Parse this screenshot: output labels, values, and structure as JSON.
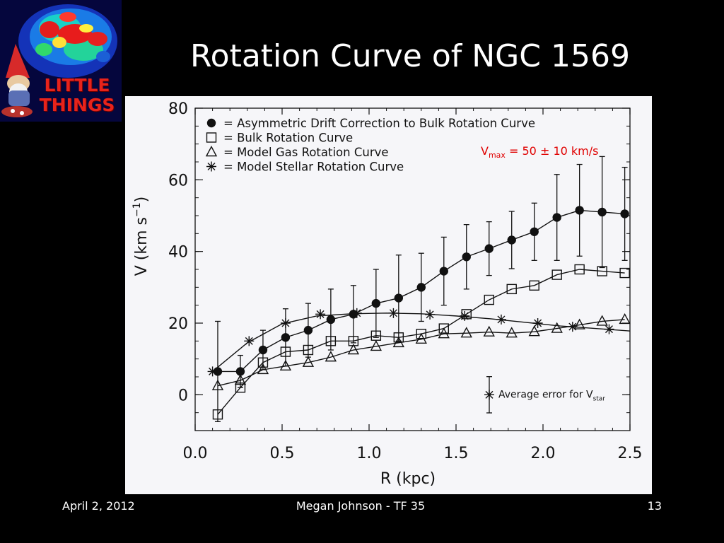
{
  "slide": {
    "title": "Rotation Curve of NGC 1569",
    "logo_text_line1": "LITTLE",
    "logo_text_line2": "THINGS",
    "footer_date": "April 2, 2012",
    "footer_center": "Megan Johnson - TF 35",
    "footer_page": "13"
  },
  "colors": {
    "background": "#000000",
    "text": "#ffffff",
    "annotation": "#e00000",
    "logo_text": "#e8231b"
  },
  "chart_data": {
    "type": "scatter",
    "xlabel": "R (kpc)",
    "ylabel_parts": [
      "V (km s",
      "−1",
      ")"
    ],
    "xlim": [
      0.0,
      2.5
    ],
    "ylim": [
      -10,
      80
    ],
    "xticks": [
      "0.0",
      "0.5",
      "1.0",
      "1.5",
      "2.0",
      "2.5"
    ],
    "yticks": [
      "0",
      "20",
      "40",
      "60",
      "80"
    ],
    "legend_position": "top-left",
    "annotation": {
      "v": "V",
      "sub": "max",
      "rest": " = 50 ± 10 km/s"
    },
    "error_legend": {
      "text": "Average error for V",
      "sub": "star",
      "err": 2.3
    },
    "series": [
      {
        "name": "Asymmetric Drift Correction to Bulk Rotation Curve",
        "marker": "filled-circle",
        "x": [
          0.13,
          0.26,
          0.39,
          0.52,
          0.65,
          0.78,
          0.91,
          1.04,
          1.17,
          1.3,
          1.43,
          1.56,
          1.69,
          1.82,
          1.95,
          2.08,
          2.21,
          2.34,
          2.47
        ],
        "y": [
          6.5,
          6.5,
          12.5,
          16,
          18,
          21,
          22.5,
          25.5,
          27,
          30,
          34.5,
          38.5,
          40.8,
          43.2,
          45.5,
          49.5,
          51.5,
          51,
          50.5
        ],
        "err": [
          14,
          4.5,
          5.5,
          8,
          7.5,
          8.5,
          8,
          9.5,
          12,
          9.5,
          9.5,
          9,
          7.5,
          8,
          8,
          12,
          12.8,
          15.5,
          13
        ]
      },
      {
        "name": "Bulk Rotation Curve",
        "marker": "open-square",
        "x": [
          0.13,
          0.26,
          0.39,
          0.52,
          0.65,
          0.78,
          0.91,
          1.04,
          1.17,
          1.3,
          1.43,
          1.56,
          1.69,
          1.82,
          1.95,
          2.08,
          2.21,
          2.34,
          2.47
        ],
        "y": [
          -5.5,
          2,
          9,
          12,
          12.5,
          15,
          15,
          16.5,
          16,
          17,
          18.5,
          22.5,
          26.5,
          29.5,
          30.5,
          33.5,
          35,
          34.5,
          34
        ]
      },
      {
        "name": "Model Gas Rotation Curve",
        "marker": "open-triangle",
        "x": [
          0.13,
          0.26,
          0.39,
          0.52,
          0.65,
          0.78,
          0.91,
          1.04,
          1.17,
          1.3,
          1.43,
          1.56,
          1.69,
          1.82,
          1.95,
          2.08,
          2.21,
          2.34,
          2.47
        ],
        "y": [
          2.5,
          4,
          7,
          8,
          9,
          10.5,
          12.5,
          13.5,
          14.5,
          15.5,
          17,
          17.2,
          17.5,
          17.2,
          17.6,
          18.5,
          19.5,
          20.5,
          21
        ]
      },
      {
        "name": "Model Stellar Rotation Curve",
        "marker": "asterisk",
        "x": [
          0.1,
          0.31,
          0.52,
          0.72,
          0.93,
          1.14,
          1.35,
          1.55,
          1.76,
          1.97,
          2.17,
          2.38
        ],
        "y": [
          6.5,
          15,
          20,
          22.5,
          22.8,
          22.8,
          22.4,
          22,
          21,
          20,
          19,
          18.3
        ],
        "line_x": [
          0.1,
          0.3,
          0.5,
          0.7,
          0.9,
          1.1,
          1.3,
          1.5,
          1.7,
          1.9,
          2.1,
          2.3,
          2.5
        ],
        "line_y": [
          6.5,
          14.5,
          19.8,
          22,
          22.6,
          22.8,
          22.6,
          22,
          21.2,
          20.2,
          19.2,
          18.5,
          17.8
        ]
      }
    ]
  }
}
